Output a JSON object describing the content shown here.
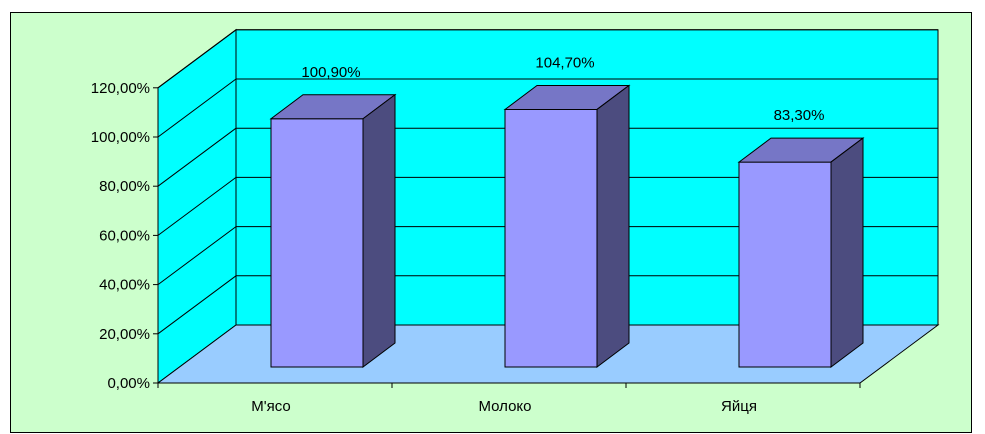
{
  "chart_data": {
    "type": "bar",
    "categories": [
      "М'ясо",
      "Молоко",
      "Яйця"
    ],
    "values": [
      100.9,
      104.7,
      83.3
    ],
    "data_labels": [
      "100,90%",
      "104,70%",
      "83,30%"
    ],
    "title": "",
    "xlabel": "",
    "ylabel": "",
    "ylim": [
      0,
      120
    ],
    "yticks": [
      0,
      20,
      40,
      60,
      80,
      100,
      120
    ],
    "ytick_labels": [
      "0,00%",
      "20,00%",
      "40,00%",
      "60,00%",
      "80,00%",
      "100,00%",
      "120,00%"
    ],
    "grid": true,
    "legend": "none",
    "style": "3d-column",
    "colors": {
      "chart_area": "#ccffcc",
      "back_wall": "#00ffff",
      "side_wall": "#00ffff",
      "floor": "#99ccff",
      "bar_front": "#9999ff",
      "bar_top": "#7676c6",
      "bar_side": "#4c4c7f",
      "gridline": "#000000"
    }
  }
}
